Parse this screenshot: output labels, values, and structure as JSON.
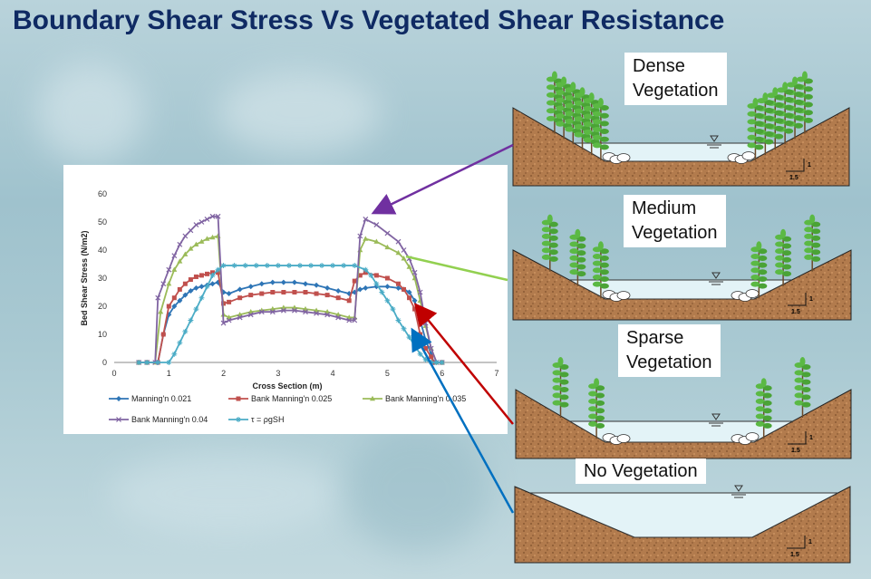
{
  "title": "Boundary Shear Stress Vs Vegetated Shear Resistance",
  "panels": [
    {
      "label_line1": "Dense",
      "label_line2": "Vegetation",
      "scale_h": "1.5",
      "scale_v": "1"
    },
    {
      "label_line1": "Medium",
      "label_line2": "Vegetation",
      "scale_h": "1.5",
      "scale_v": "1"
    },
    {
      "label_line1": "Sparse",
      "label_line2": "Vegetation",
      "scale_h": "1.5",
      "scale_v": "1"
    },
    {
      "label_line1": "No Vegetation",
      "label_line2": "",
      "scale_h": "1.5",
      "scale_v": "1"
    }
  ],
  "colors": {
    "title": "#0f2a63",
    "soil": "#b07a4c",
    "water": "#dff0f5",
    "tree": "#5bb944",
    "arrow_dense": "#7030a0",
    "arrow_medium": "#92d050",
    "arrow_sparse": "#c00000",
    "arrow_none": "#0070c0"
  },
  "chart_data": {
    "type": "line",
    "xlabel": "Cross Section (m)",
    "ylabel": "Bed Shear Stress (N/m2)",
    "xlim": [
      0,
      7
    ],
    "ylim": [
      0,
      60
    ],
    "xticks": [
      0,
      1,
      2,
      3,
      4,
      5,
      6,
      7
    ],
    "yticks": [
      0,
      10,
      20,
      30,
      40,
      50,
      60
    ],
    "grid": false,
    "legend_position": "bottom",
    "series": [
      {
        "name": "Manning'n 0.021",
        "color": "#2e75b6",
        "marker": "diamond",
        "x": [
          0.45,
          0.6,
          0.8,
          0.9,
          1.0,
          1.1,
          1.2,
          1.3,
          1.4,
          1.5,
          1.6,
          1.7,
          1.8,
          1.9,
          2.0,
          2.1,
          2.3,
          2.5,
          2.7,
          2.9,
          3.1,
          3.3,
          3.5,
          3.7,
          3.9,
          4.1,
          4.3,
          4.4,
          4.5,
          4.6,
          4.8,
          5.0,
          5.2,
          5.3,
          5.4,
          5.5,
          5.6,
          5.7,
          5.8,
          5.85,
          6.0
        ],
        "y": [
          0,
          0,
          0,
          10,
          17,
          20,
          22,
          24,
          25.5,
          26.5,
          27,
          27.5,
          28,
          28.5,
          25,
          24.5,
          26,
          27,
          28,
          28.5,
          28.5,
          28.5,
          28,
          27.5,
          26.5,
          25.5,
          24.5,
          25,
          26,
          26.5,
          27,
          27,
          26.5,
          26,
          25,
          22,
          15,
          8,
          3,
          0,
          0
        ]
      },
      {
        "name": "Bank Manning'n 0.025",
        "color": "#c0504d",
        "marker": "square",
        "x": [
          0.45,
          0.6,
          0.8,
          0.9,
          1.0,
          1.1,
          1.2,
          1.3,
          1.4,
          1.5,
          1.6,
          1.7,
          1.8,
          1.9,
          2.0,
          2.1,
          2.3,
          2.5,
          2.7,
          2.9,
          3.1,
          3.3,
          3.5,
          3.7,
          3.9,
          4.1,
          4.3,
          4.4,
          4.5,
          4.6,
          4.8,
          5.0,
          5.2,
          5.3,
          5.4,
          5.5,
          5.6,
          5.7,
          5.8,
          5.85,
          6.0
        ],
        "y": [
          0,
          0,
          0,
          10,
          20,
          23,
          26,
          28,
          29.5,
          30.5,
          31,
          31.5,
          32,
          32,
          21,
          21.5,
          23,
          24,
          24.5,
          25,
          25,
          25,
          25,
          24.5,
          24,
          23,
          22,
          29,
          31,
          32,
          31,
          30,
          28,
          26,
          23,
          19,
          10,
          5,
          2,
          0,
          0
        ]
      },
      {
        "name": "Bank Manning'n 0.035",
        "color": "#9bbb59",
        "marker": "triangle",
        "x": [
          0.45,
          0.6,
          0.75,
          0.85,
          1.0,
          1.1,
          1.2,
          1.3,
          1.4,
          1.5,
          1.6,
          1.7,
          1.8,
          1.9,
          2.0,
          2.1,
          2.3,
          2.5,
          2.7,
          2.9,
          3.1,
          3.3,
          3.5,
          3.7,
          3.9,
          4.1,
          4.3,
          4.4,
          4.5,
          4.6,
          4.8,
          5.0,
          5.2,
          5.3,
          5.4,
          5.5,
          5.6,
          5.7,
          5.8,
          5.9,
          6.0
        ],
        "y": [
          0,
          0,
          0,
          18,
          28,
          33,
          36,
          38.5,
          40.5,
          42,
          43,
          44,
          44.5,
          45,
          17,
          16,
          17,
          18,
          18.5,
          19,
          19.5,
          19.5,
          19,
          18.5,
          18,
          17,
          16,
          16,
          40,
          44,
          43,
          41,
          39,
          37,
          34,
          30,
          22,
          13,
          5,
          0,
          0
        ]
      },
      {
        "name": "Bank Manning'n 0.04",
        "color": "#8064a2",
        "marker": "x",
        "x": [
          0.45,
          0.6,
          0.75,
          0.8,
          0.9,
          1.0,
          1.1,
          1.2,
          1.3,
          1.4,
          1.5,
          1.6,
          1.7,
          1.8,
          1.9,
          2.0,
          2.1,
          2.3,
          2.5,
          2.7,
          2.9,
          3.1,
          3.3,
          3.5,
          3.7,
          3.9,
          4.1,
          4.3,
          4.4,
          4.5,
          4.6,
          4.8,
          5.0,
          5.2,
          5.3,
          5.4,
          5.5,
          5.6,
          5.7,
          5.8,
          5.9,
          6.0
        ],
        "y": [
          0,
          0,
          0,
          23,
          28,
          33,
          38,
          42,
          45,
          47,
          49,
          50,
          51,
          52,
          52,
          14,
          15,
          16,
          17,
          18,
          18,
          18.5,
          18.5,
          18,
          17.5,
          17,
          16,
          15,
          15,
          45,
          51,
          49,
          46,
          43,
          40,
          37,
          32,
          25,
          14,
          5,
          0,
          0
        ]
      },
      {
        "name": "τ = ρgSH",
        "color": "#4bacc6",
        "marker": "star",
        "x": [
          0.45,
          0.6,
          0.8,
          1.0,
          1.1,
          1.2,
          1.3,
          1.4,
          1.5,
          1.6,
          1.7,
          1.8,
          1.9,
          2.0,
          2.2,
          2.4,
          2.6,
          2.8,
          3.0,
          3.2,
          3.4,
          3.6,
          3.8,
          4.0,
          4.2,
          4.4,
          4.6,
          4.7,
          4.8,
          4.9,
          5.0,
          5.1,
          5.2,
          5.3,
          5.4,
          5.5,
          5.6,
          5.7,
          5.8,
          5.9,
          6.0
        ],
        "y": [
          0,
          0,
          0,
          0,
          3,
          7,
          11,
          15,
          19,
          23,
          27,
          31,
          33,
          34.5,
          34.5,
          34.5,
          34.5,
          34.5,
          34.5,
          34.5,
          34.5,
          34.5,
          34.5,
          34.5,
          34.5,
          34.5,
          33,
          31,
          28,
          25,
          22,
          19,
          15,
          12,
          9,
          6,
          3,
          1,
          0,
          0,
          0
        ]
      }
    ]
  }
}
